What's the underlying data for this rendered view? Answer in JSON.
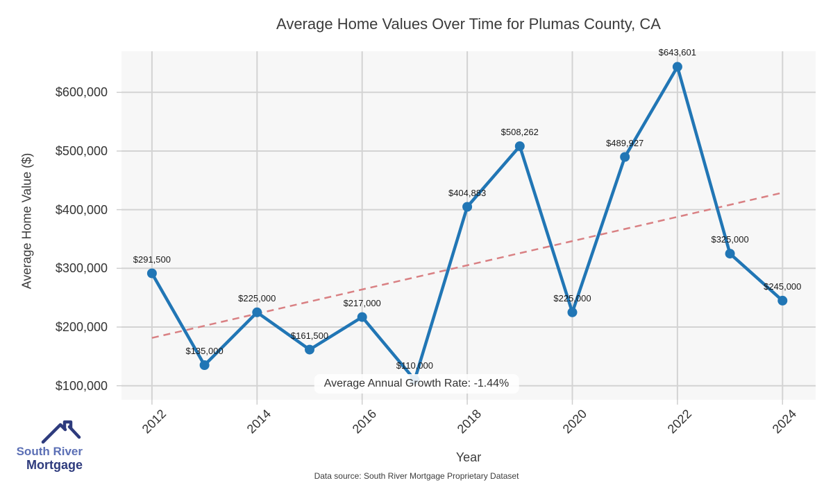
{
  "chart_data": {
    "type": "line",
    "title": "Average Home Values Over Time for Plumas County, CA",
    "xlabel": "Year",
    "ylabel": "Average Home Value ($)",
    "x": [
      2012,
      2013,
      2014,
      2015,
      2016,
      2017,
      2018,
      2019,
      2020,
      2021,
      2022,
      2023,
      2024
    ],
    "series": [
      {
        "name": "Average Home Value",
        "values": [
          291500,
          135000,
          225000,
          161500,
          217000,
          110000,
          404883,
          508262,
          225000,
          489927,
          643601,
          325000,
          245000
        ]
      }
    ],
    "point_labels": [
      "$291,500",
      "$135,000",
      "$225,000",
      "$161,500",
      "$217,000",
      "$110,000",
      "$404,883",
      "$508,262",
      "$225,000",
      "$489,927",
      "$643,601",
      "$325,000",
      "$245,000"
    ],
    "trend_line": {
      "x": [
        2012,
        2024
      ],
      "y": [
        181400,
        429000
      ],
      "style": "dashed"
    },
    "annotation": "Average Annual Growth Rate: -1.44%",
    "xticks": [
      2012,
      2014,
      2016,
      2018,
      2020,
      2022,
      2024
    ],
    "ytick_values": [
      100000,
      200000,
      300000,
      400000,
      500000,
      600000
    ],
    "ytick_labels": [
      "$100,000",
      "$200,000",
      "$300,000",
      "$400,000",
      "$500,000",
      "$600,000"
    ],
    "xlim": [
      2011.42,
      2024.63
    ],
    "ylim": [
      76000,
      670000
    ],
    "grid": true,
    "legend": "none",
    "colors": {
      "line": "#2176b5",
      "marker": "#2176b5",
      "trend": "#d98083",
      "plot_bg": "#f7f7f7",
      "grid": "#d3d3d3",
      "tick_mark": "#cfcfcf"
    }
  },
  "footer": {
    "data_source": "Data source: South River Mortgage Proprietary Dataset"
  },
  "logo": {
    "line1": "South River",
    "line2": "Mortgage",
    "color1": "#5b6fb5",
    "color2": "#2e3b7d"
  }
}
